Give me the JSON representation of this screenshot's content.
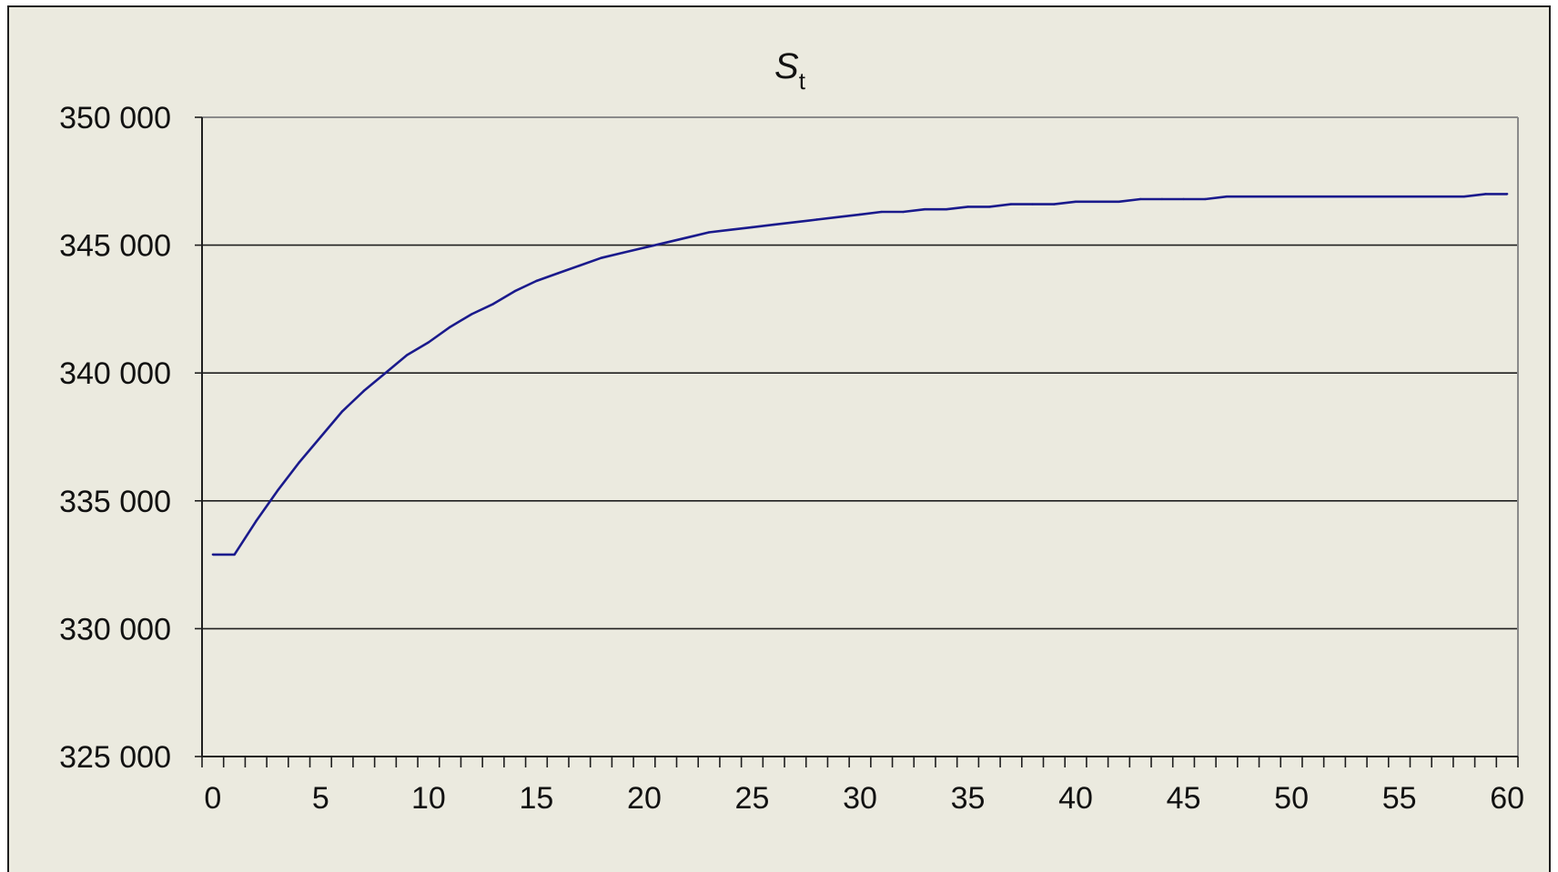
{
  "chart_data": {
    "type": "line",
    "title": "S",
    "title_subscript": "t",
    "xlabel": "",
    "ylabel": "",
    "xlim": [
      0,
      61
    ],
    "ylim": [
      325000,
      350000
    ],
    "x_ticks": [
      0,
      5,
      10,
      15,
      20,
      25,
      30,
      35,
      40,
      45,
      50,
      55,
      60
    ],
    "x_tick_labels": [
      "0",
      "5",
      "10",
      "15",
      "20",
      "25",
      "30",
      "35",
      "40",
      "45",
      "50",
      "55",
      "60"
    ],
    "y_ticks": [
      325000,
      330000,
      335000,
      340000,
      345000,
      350000
    ],
    "y_tick_labels": [
      "325 000",
      "330 000",
      "335 000",
      "340 000",
      "345 000",
      "350 000"
    ],
    "grid": "horizontal",
    "legend": "none",
    "colors": {
      "series": "#1a1a8c",
      "plot_background": "#ebeadf",
      "grid": "#1e1e1e"
    },
    "series": [
      {
        "x": [
          0,
          1,
          2,
          3,
          4,
          5,
          6,
          7,
          8,
          9,
          10,
          11,
          12,
          13,
          14,
          15,
          16,
          17,
          18,
          19,
          20,
          21,
          22,
          23,
          24,
          25,
          26,
          27,
          28,
          29,
          30,
          31,
          32,
          33,
          34,
          35,
          36,
          37,
          38,
          39,
          40,
          41,
          42,
          43,
          44,
          45,
          46,
          47,
          48,
          49,
          50,
          51,
          52,
          53,
          54,
          55,
          56,
          57,
          58,
          59,
          60
        ],
        "values": [
          332900,
          332900,
          334200,
          335400,
          336500,
          337500,
          338500,
          339300,
          340000,
          340700,
          341200,
          341800,
          342300,
          342700,
          343200,
          343600,
          343900,
          344200,
          344500,
          344700,
          344900,
          345100,
          345300,
          345500,
          345600,
          345700,
          345800,
          345900,
          346000,
          346100,
          346200,
          346300,
          346300,
          346400,
          346400,
          346500,
          346500,
          346600,
          346600,
          346600,
          346700,
          346700,
          346700,
          346800,
          346800,
          346800,
          346800,
          346900,
          346900,
          346900,
          346900,
          346900,
          346900,
          346900,
          346900,
          346900,
          346900,
          346900,
          346900,
          347000,
          347000
        ]
      }
    ]
  }
}
